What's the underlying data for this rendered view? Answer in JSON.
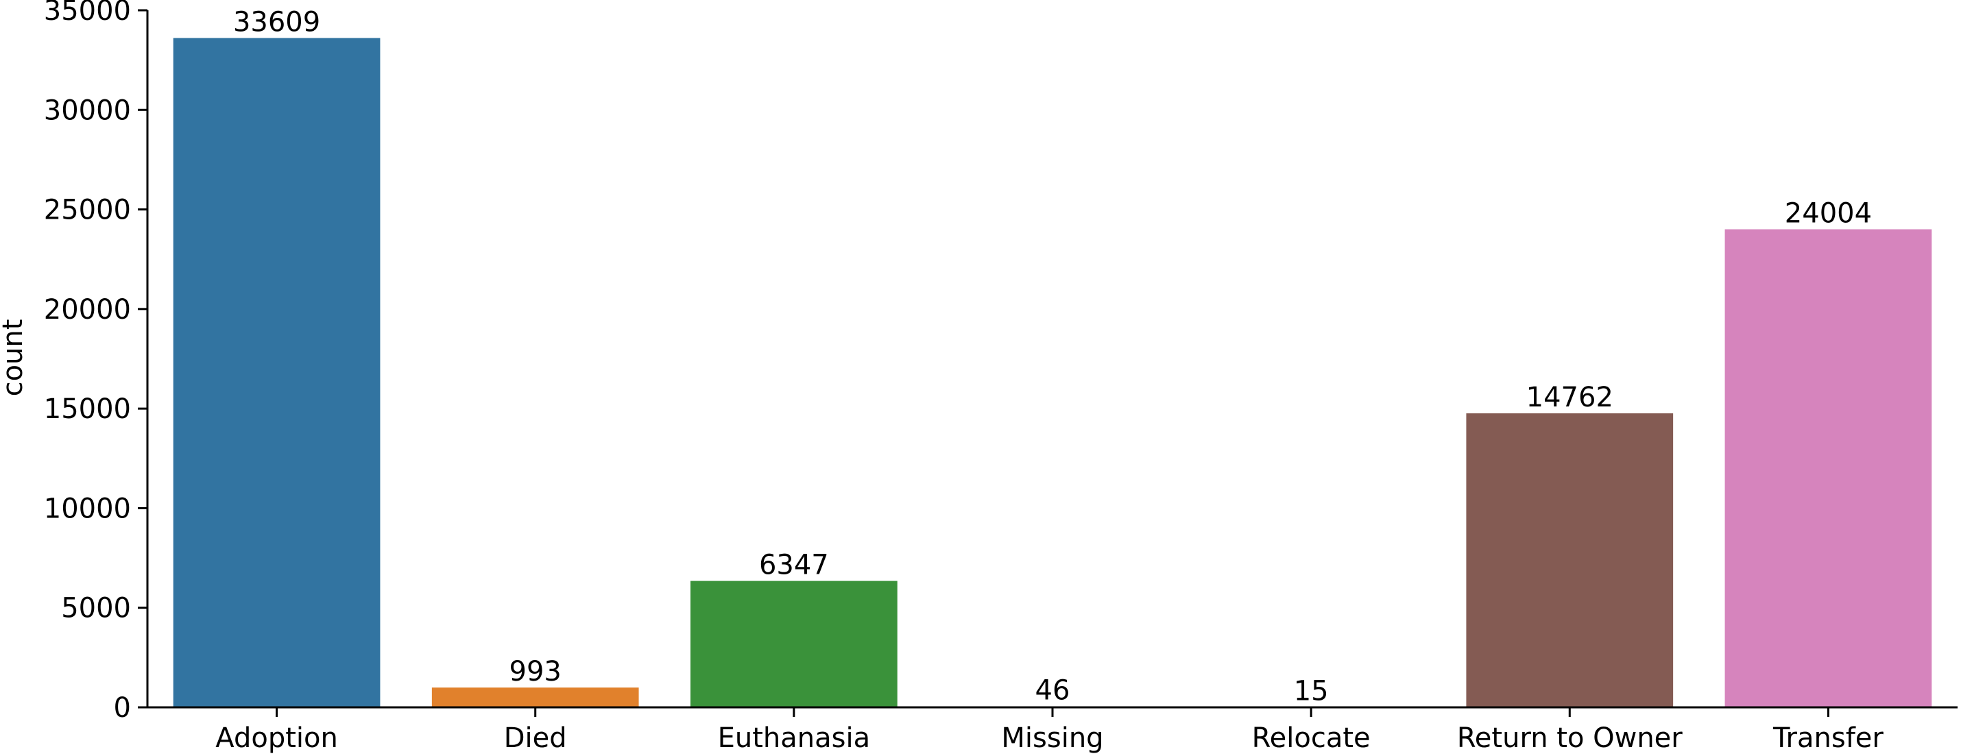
{
  "chart_data": {
    "type": "bar",
    "title": "",
    "xlabel": "",
    "ylabel": "count",
    "ylim": [
      0,
      35000
    ],
    "yticks": [
      0,
      5000,
      10000,
      15000,
      20000,
      25000,
      30000,
      35000
    ],
    "categories": [
      "Adoption",
      "Died",
      "Euthanasia",
      "Missing",
      "Relocate",
      "Return to Owner",
      "Transfer"
    ],
    "values": [
      33609,
      993,
      6347,
      46,
      15,
      14762,
      24004
    ],
    "colors": [
      "#3274a1",
      "#e1812c",
      "#3a923a",
      "#c03d3e",
      "#9372b2",
      "#845b53",
      "#d684bd"
    ],
    "grid": false,
    "legend": "none"
  }
}
